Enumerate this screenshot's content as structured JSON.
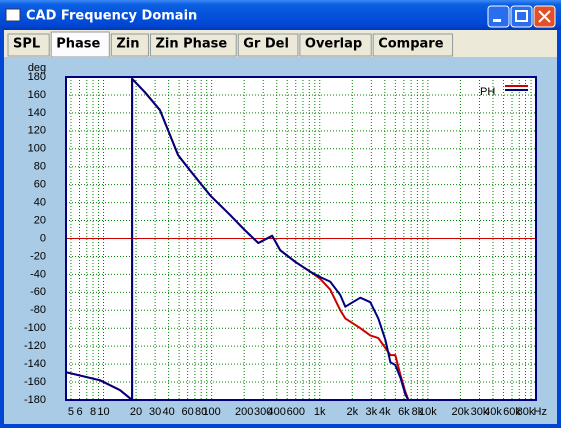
{
  "window": {
    "title": "CAD Frequency Domain"
  },
  "tabs": [
    "SPL",
    "Phase",
    "Zin",
    "Zin Phase",
    "Gr Del",
    "Overlap",
    "Compare"
  ],
  "active_tab": 1,
  "chart_data": {
    "type": "line",
    "ylabel": "deg",
    "xlabel": "Hz",
    "legend_label": "PH",
    "legend": "top-right",
    "xscale": "log",
    "xlim": [
      4.5,
      100000
    ],
    "ylim": [
      -180,
      180
    ],
    "grid": true,
    "zero_line_color": "#cc0000",
    "xticks": [
      5,
      6,
      8,
      10,
      20,
      30,
      40,
      60,
      80,
      100,
      200,
      300,
      400,
      600,
      {
        "value": 1000,
        "label": "1k"
      },
      {
        "value": 2000,
        "label": "2k"
      },
      {
        "value": 3000,
        "label": "3k"
      },
      {
        "value": 4000,
        "label": "4k"
      },
      {
        "value": 6000,
        "label": "6k"
      },
      {
        "value": 8000,
        "label": "8k"
      },
      {
        "value": 10000,
        "label": "10k"
      },
      {
        "value": 20000,
        "label": "20k"
      },
      {
        "value": 30000,
        "label": "30k"
      },
      {
        "value": 40000,
        "label": "40k"
      },
      {
        "value": 60000,
        "label": "60k"
      },
      {
        "value": 80000,
        "label": "80k"
      }
    ],
    "xminorticks": [
      7,
      9,
      50,
      70,
      90,
      500,
      700,
      800,
      900,
      5000,
      7000,
      9000,
      50000,
      70000,
      90000
    ],
    "yticks": [
      -180,
      -160,
      -140,
      -120,
      -100,
      -80,
      -60,
      -40,
      -20,
      0,
      20,
      40,
      60,
      80,
      100,
      120,
      140,
      160,
      180
    ],
    "x": [
      4.5,
      9.3,
      14.2,
      18.4,
      18.4,
      24.2,
      33.3,
      49,
      63,
      97,
      149,
      204,
      270,
      363,
      431,
      593,
      817,
      1011,
      1250,
      1549,
      1722,
      2371,
      2936,
      3480,
      4044,
      4500,
      5000,
      5570,
      6200,
      6600
    ],
    "series": [
      {
        "color": "#cc0000",
        "values": [
          -149,
          -158,
          -169,
          -180,
          178,
          163,
          143,
          93,
          76,
          48,
          26,
          9,
          -5,
          3,
          -13,
          -26,
          -37,
          -45,
          -57,
          -80,
          -89,
          -100,
          -108,
          -111,
          -122,
          -130,
          -130,
          -152,
          -171,
          -180
        ]
      },
      {
        "color": "#000080",
        "values": [
          -149,
          -158,
          -169,
          -180,
          178,
          163,
          143,
          93,
          76,
          48,
          26,
          9,
          -5,
          3,
          -13,
          -26,
          -37,
          -43,
          -48,
          -63,
          -76,
          -66,
          -71,
          -89,
          -113,
          -138,
          -141,
          -155,
          -174,
          -180
        ]
      }
    ]
  }
}
